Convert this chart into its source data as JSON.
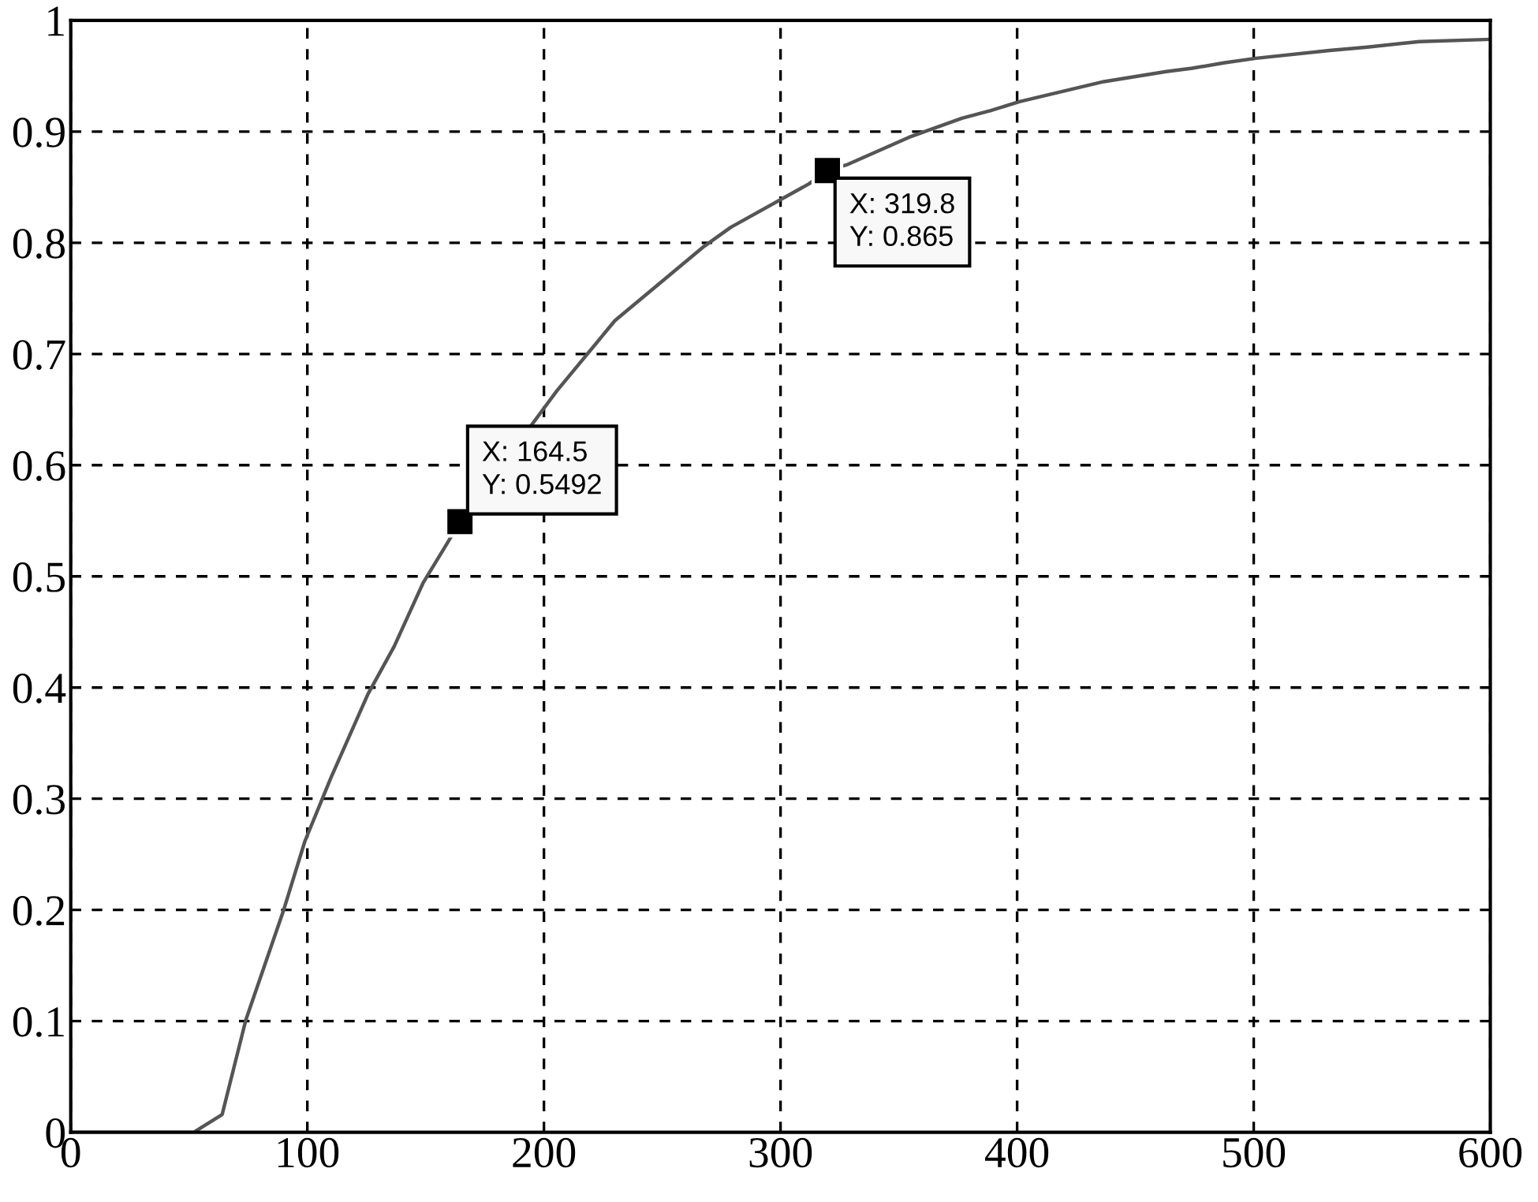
{
  "chart_data": {
    "type": "line",
    "x": [
      0,
      52,
      64,
      74,
      90,
      99,
      110,
      125.6,
      136.7,
      148.9,
      158.9,
      164.5,
      205.5,
      230,
      267.8,
      279,
      312,
      319.8,
      327.8,
      354.4,
      376.7,
      388.9,
      401,
      436.7,
      463,
      474,
      487.8,
      501,
      532,
      548,
      570,
      600
    ],
    "series": [
      {
        "color": "#555555",
        "values": [
          0,
          0,
          0.016,
          0.101,
          0.2,
          0.262,
          0.319,
          0.394,
          0.437,
          0.494,
          0.529,
          0.549,
          0.667,
          0.73,
          0.797,
          0.814,
          0.853,
          0.865,
          0.87,
          0.895,
          0.912,
          0.919,
          0.927,
          0.945,
          0.954,
          0.957,
          0.962,
          0.966,
          0.973,
          0.976,
          0.981,
          0.983
        ]
      }
    ],
    "xlim": [
      0,
      600
    ],
    "xticks": [
      0,
      100,
      200,
      300,
      400,
      500,
      600
    ],
    "ylim": [
      0,
      1
    ],
    "yticks": [
      0,
      {
        "value": 0.1,
        "label": "0.1"
      },
      {
        "value": 0.2,
        "label": "0.2"
      },
      {
        "value": 0.3,
        "label": "0.3"
      },
      {
        "value": 0.4,
        "label": "0.4"
      },
      {
        "value": 0.5,
        "label": "0.5"
      },
      {
        "value": 0.6,
        "label": "0.6"
      },
      {
        "value": 0.7,
        "label": "0.7"
      },
      {
        "value": 0.8,
        "label": "0.8"
      },
      {
        "value": 0.9,
        "label": "0.9"
      },
      1
    ],
    "grid": true,
    "line_style": "solid",
    "annotations": [
      {
        "text": "X: 164.5\nY: 0.5492",
        "x": 164.5,
        "y": 0.5492
      },
      {
        "text": "X: 319.8\nY: 0.865",
        "x": 319.8,
        "y": 0.865
      }
    ]
  }
}
